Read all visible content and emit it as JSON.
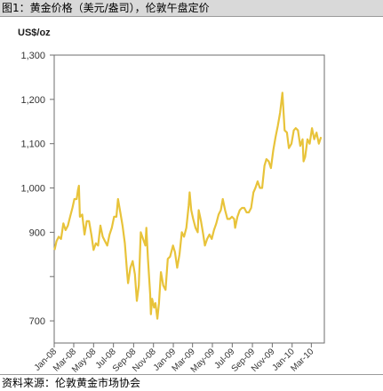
{
  "header": {
    "title": "图1：黄金价格（美元/盎司），伦敦午盘定价"
  },
  "footer": {
    "source": "资料来源：伦敦黄金市场协会"
  },
  "chart_data": {
    "type": "line",
    "title": "图1：黄金价格（美元/盎司），伦敦午盘定价",
    "ylabel": "US$/oz",
    "xlabel": "",
    "ylim": [
      650,
      1300
    ],
    "yticks": [
      700,
      800,
      900,
      1000,
      1100,
      1200,
      1300
    ],
    "ytick_labels": [
      "700",
      "",
      "900",
      "1,000",
      "1,100",
      "1,200",
      "1,300"
    ],
    "xticks": [
      "Jan-08",
      "Mar-08",
      "May-08",
      "Jul-08",
      "Sep-08",
      "Nov-08",
      "Jan-09",
      "Mar-09",
      "May-09",
      "Jul-09",
      "Sep-09",
      "Nov-09",
      "Jan-10",
      "Mar-10"
    ],
    "grid": false,
    "line_color": "#e8c33a",
    "series": [
      {
        "values": [
          [
            "2008-01-02",
            860
          ],
          [
            "2008-01-08",
            880
          ],
          [
            "2008-01-15",
            890
          ],
          [
            "2008-01-22",
            885
          ],
          [
            "2008-01-29",
            920
          ],
          [
            "2008-02-05",
            905
          ],
          [
            "2008-02-12",
            915
          ],
          [
            "2008-02-19",
            935
          ],
          [
            "2008-02-26",
            955
          ],
          [
            "2008-03-03",
            975
          ],
          [
            "2008-03-10",
            975
          ],
          [
            "2008-03-14",
            995
          ],
          [
            "2008-03-17",
            1005
          ],
          [
            "2008-03-20",
            935
          ],
          [
            "2008-03-27",
            940
          ],
          [
            "2008-04-03",
            895
          ],
          [
            "2008-04-10",
            925
          ],
          [
            "2008-04-17",
            925
          ],
          [
            "2008-04-24",
            895
          ],
          [
            "2008-05-01",
            860
          ],
          [
            "2008-05-08",
            875
          ],
          [
            "2008-05-15",
            870
          ],
          [
            "2008-05-22",
            915
          ],
          [
            "2008-05-29",
            890
          ],
          [
            "2008-06-05",
            880
          ],
          [
            "2008-06-12",
            870
          ],
          [
            "2008-06-19",
            895
          ],
          [
            "2008-06-26",
            910
          ],
          [
            "2008-07-03",
            935
          ],
          [
            "2008-07-10",
            935
          ],
          [
            "2008-07-15",
            975
          ],
          [
            "2008-07-22",
            945
          ],
          [
            "2008-07-29",
            915
          ],
          [
            "2008-08-05",
            875
          ],
          [
            "2008-08-12",
            810
          ],
          [
            "2008-08-15",
            785
          ],
          [
            "2008-08-22",
            820
          ],
          [
            "2008-08-29",
            835
          ],
          [
            "2008-09-05",
            805
          ],
          [
            "2008-09-11",
            745
          ],
          [
            "2008-09-17",
            780
          ],
          [
            "2008-09-23",
            900
          ],
          [
            "2008-09-30",
            885
          ],
          [
            "2008-10-07",
            870
          ],
          [
            "2008-10-10",
            910
          ],
          [
            "2008-10-15",
            840
          ],
          [
            "2008-10-22",
            760
          ],
          [
            "2008-10-24",
            715
          ],
          [
            "2008-10-28",
            750
          ],
          [
            "2008-11-03",
            730
          ],
          [
            "2008-11-07",
            740
          ],
          [
            "2008-11-13",
            705
          ],
          [
            "2008-11-18",
            740
          ],
          [
            "2008-11-24",
            810
          ],
          [
            "2008-12-01",
            780
          ],
          [
            "2008-12-08",
            770
          ],
          [
            "2008-12-15",
            840
          ],
          [
            "2008-12-22",
            845
          ],
          [
            "2008-12-31",
            870
          ],
          [
            "2009-01-06",
            855
          ],
          [
            "2009-01-13",
            820
          ],
          [
            "2009-01-20",
            850
          ],
          [
            "2009-01-27",
            900
          ],
          [
            "2009-02-03",
            890
          ],
          [
            "2009-02-10",
            910
          ],
          [
            "2009-02-17",
            960
          ],
          [
            "2009-02-20",
            990
          ],
          [
            "2009-02-25",
            950
          ],
          [
            "2009-03-03",
            930
          ],
          [
            "2009-03-10",
            910
          ],
          [
            "2009-03-17",
            900
          ],
          [
            "2009-03-20",
            950
          ],
          [
            "2009-03-27",
            925
          ],
          [
            "2009-04-03",
            895
          ],
          [
            "2009-04-08",
            870
          ],
          [
            "2009-04-15",
            885
          ],
          [
            "2009-04-22",
            895
          ],
          [
            "2009-04-29",
            885
          ],
          [
            "2009-05-06",
            905
          ],
          [
            "2009-05-13",
            920
          ],
          [
            "2009-05-20",
            940
          ],
          [
            "2009-05-27",
            950
          ],
          [
            "2009-06-02",
            975
          ],
          [
            "2009-06-09",
            950
          ],
          [
            "2009-06-16",
            930
          ],
          [
            "2009-06-23",
            930
          ],
          [
            "2009-06-30",
            935
          ],
          [
            "2009-07-07",
            930
          ],
          [
            "2009-07-10",
            910
          ],
          [
            "2009-07-17",
            935
          ],
          [
            "2009-07-24",
            950
          ],
          [
            "2009-07-31",
            955
          ],
          [
            "2009-08-07",
            955
          ],
          [
            "2009-08-14",
            945
          ],
          [
            "2009-08-21",
            945
          ],
          [
            "2009-08-28",
            955
          ],
          [
            "2009-09-04",
            990
          ],
          [
            "2009-09-10",
            1000
          ],
          [
            "2009-09-17",
            1015
          ],
          [
            "2009-09-24",
            1000
          ],
          [
            "2009-10-01",
            1000
          ],
          [
            "2009-10-08",
            1050
          ],
          [
            "2009-10-14",
            1065
          ],
          [
            "2009-10-21",
            1060
          ],
          [
            "2009-10-28",
            1045
          ],
          [
            "2009-11-04",
            1085
          ],
          [
            "2009-11-11",
            1115
          ],
          [
            "2009-11-18",
            1140
          ],
          [
            "2009-11-25",
            1170
          ],
          [
            "2009-12-02",
            1215
          ],
          [
            "2009-12-09",
            1130
          ],
          [
            "2009-12-16",
            1125
          ],
          [
            "2009-12-22",
            1090
          ],
          [
            "2009-12-30",
            1100
          ],
          [
            "2010-01-06",
            1130
          ],
          [
            "2010-01-12",
            1135
          ],
          [
            "2010-01-19",
            1130
          ],
          [
            "2010-01-26",
            1095
          ],
          [
            "2010-02-02",
            1110
          ],
          [
            "2010-02-05",
            1060
          ],
          [
            "2010-02-10",
            1070
          ],
          [
            "2010-02-17",
            1110
          ],
          [
            "2010-02-24",
            1100
          ],
          [
            "2010-03-03",
            1135
          ],
          [
            "2010-03-10",
            1110
          ],
          [
            "2010-03-17",
            1125
          ],
          [
            "2010-03-24",
            1100
          ],
          [
            "2010-03-31",
            1115
          ]
        ]
      }
    ]
  }
}
